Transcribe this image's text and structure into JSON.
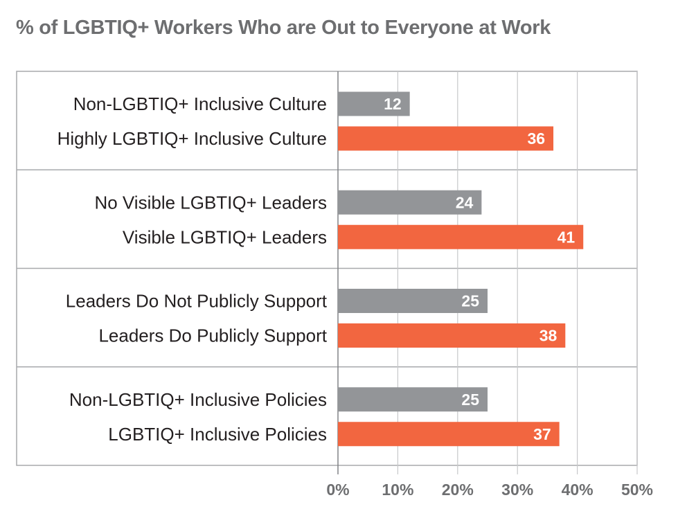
{
  "chart_data": {
    "type": "bar",
    "orientation": "horizontal",
    "title": "% of LGBTIQ+ Workers Who are Out to Everyone at Work",
    "xlim": [
      0,
      50
    ],
    "x_ticks": [
      "0%",
      "10%",
      "20%",
      "30%",
      "40%",
      "50%"
    ],
    "grid": true,
    "colors": {
      "comparison": "#939598",
      "inclusive": "#f26640"
    },
    "groups": [
      {
        "bars": [
          {
            "label": "Non-LGBTIQ+ Inclusive Culture",
            "value": 12,
            "kind": "comparison"
          },
          {
            "label": "Highly LGBTIQ+ Inclusive Culture",
            "value": 36,
            "kind": "inclusive"
          }
        ]
      },
      {
        "bars": [
          {
            "label": "No Visible LGBTIQ+ Leaders",
            "value": 24,
            "kind": "comparison"
          },
          {
            "label": "Visible LGBTIQ+ Leaders",
            "value": 41,
            "kind": "inclusive"
          }
        ]
      },
      {
        "bars": [
          {
            "label": "Leaders Do Not Publicly Support",
            "value": 25,
            "kind": "comparison"
          },
          {
            "label": "Leaders Do Publicly Support",
            "value": 38,
            "kind": "inclusive"
          }
        ]
      },
      {
        "bars": [
          {
            "label": "Non-LGBTIQ+ Inclusive Policies",
            "value": 25,
            "kind": "comparison"
          },
          {
            "label": "LGBTIQ+ Inclusive Policies",
            "value": 37,
            "kind": "inclusive"
          }
        ]
      }
    ]
  }
}
